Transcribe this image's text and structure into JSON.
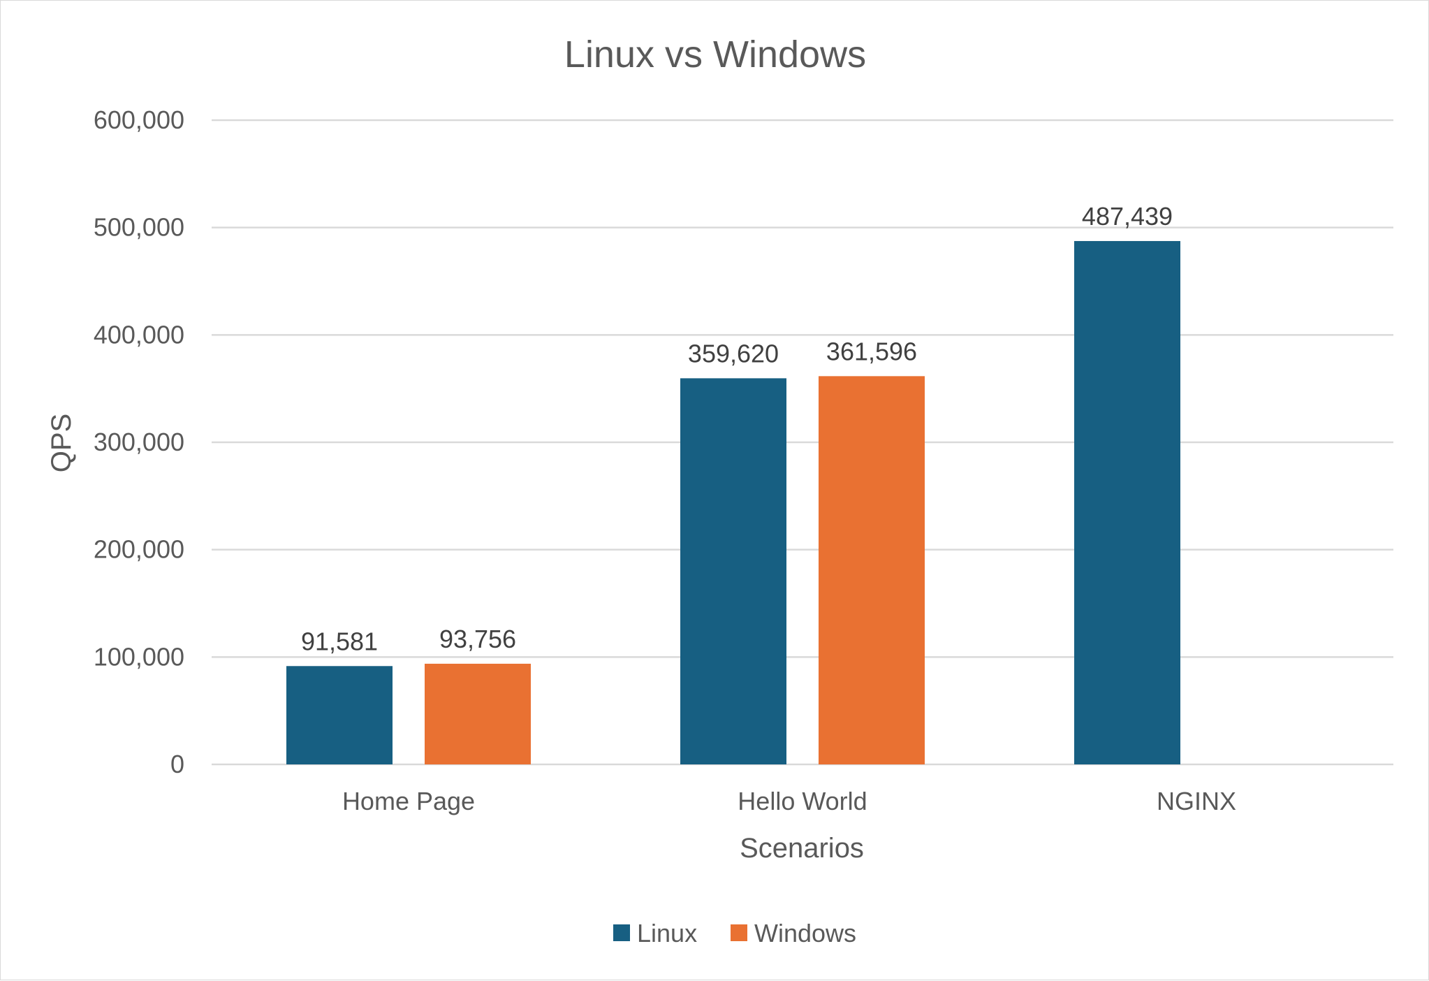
{
  "chart_data": {
    "type": "bar",
    "title": "Linux vs Windows",
    "xlabel": "Scenarios",
    "ylabel": "QPS",
    "categories": [
      "Home Page",
      "Hello World",
      "NGINX"
    ],
    "series": [
      {
        "name": "Linux",
        "color": "#175f82",
        "values": [
          91581,
          359620,
          487439
        ],
        "labels": [
          "91,581",
          "359,620",
          "487,439"
        ]
      },
      {
        "name": "Windows",
        "color": "#e97132",
        "values": [
          93756,
          361596,
          null
        ],
        "labels": [
          "93,756",
          "361,596",
          null
        ]
      }
    ],
    "ylim": [
      0,
      600000
    ],
    "yticks": [
      0,
      100000,
      200000,
      300000,
      400000,
      500000,
      600000
    ],
    "ytick_labels": [
      "0",
      "100,000",
      "200,000",
      "300,000",
      "400,000",
      "500,000",
      "600,000"
    ],
    "grid": true,
    "legend_position": "bottom"
  }
}
